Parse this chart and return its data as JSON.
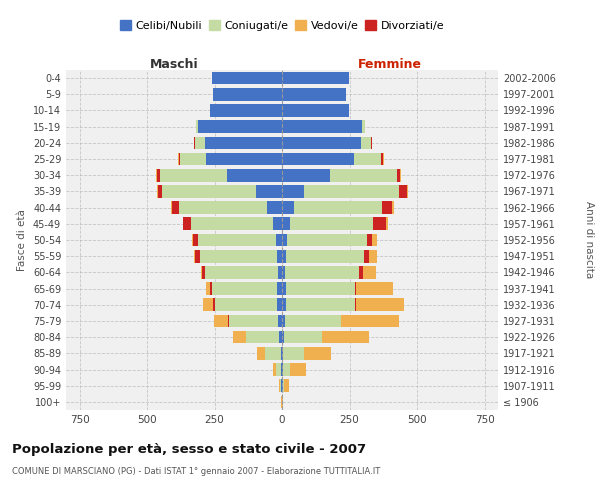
{
  "age_groups": [
    "100+",
    "95-99",
    "90-94",
    "85-89",
    "80-84",
    "75-79",
    "70-74",
    "65-69",
    "60-64",
    "55-59",
    "50-54",
    "45-49",
    "40-44",
    "35-39",
    "30-34",
    "25-29",
    "20-24",
    "15-19",
    "10-14",
    "5-9",
    "0-4"
  ],
  "birth_years": [
    "≤ 1906",
    "1907-1911",
    "1912-1916",
    "1917-1921",
    "1922-1926",
    "1927-1931",
    "1932-1936",
    "1937-1941",
    "1942-1946",
    "1947-1951",
    "1952-1956",
    "1957-1961",
    "1962-1966",
    "1967-1971",
    "1972-1976",
    "1977-1981",
    "1982-1986",
    "1987-1991",
    "1992-1996",
    "1997-2001",
    "2002-2006"
  ],
  "maschi": {
    "celibi": [
      0,
      2,
      3,
      5,
      10,
      15,
      20,
      18,
      15,
      20,
      22,
      32,
      55,
      95,
      205,
      280,
      285,
      310,
      265,
      255,
      258
    ],
    "coniugati": [
      1,
      4,
      18,
      58,
      125,
      182,
      230,
      242,
      270,
      285,
      290,
      305,
      325,
      348,
      248,
      98,
      38,
      8,
      0,
      0,
      0
    ],
    "vedovi": [
      1,
      4,
      14,
      28,
      48,
      52,
      38,
      18,
      5,
      2,
      2,
      2,
      2,
      2,
      2,
      1,
      1,
      0,
      0,
      0,
      0
    ],
    "divorziati": [
      0,
      0,
      0,
      0,
      0,
      2,
      5,
      5,
      10,
      18,
      18,
      28,
      28,
      18,
      10,
      5,
      2,
      0,
      0,
      0,
      0
    ]
  },
  "femmine": {
    "nubili": [
      0,
      2,
      3,
      5,
      8,
      12,
      15,
      15,
      12,
      15,
      18,
      28,
      45,
      80,
      178,
      268,
      292,
      298,
      248,
      238,
      248
    ],
    "coniugate": [
      1,
      6,
      28,
      78,
      140,
      205,
      255,
      255,
      275,
      290,
      295,
      310,
      325,
      355,
      248,
      98,
      38,
      8,
      0,
      0,
      0
    ],
    "vedove": [
      2,
      18,
      58,
      98,
      175,
      215,
      175,
      135,
      48,
      28,
      18,
      8,
      5,
      3,
      2,
      2,
      2,
      0,
      0,
      0,
      0
    ],
    "divorziate": [
      0,
      0,
      0,
      0,
      0,
      2,
      5,
      5,
      12,
      18,
      22,
      48,
      38,
      28,
      12,
      8,
      2,
      0,
      0,
      0,
      0
    ]
  },
  "colors": {
    "celibi": "#4472c4",
    "coniugati": "#c5dba4",
    "vedovi": "#f0b050",
    "divorziati": "#cc2222"
  },
  "xlim": 800,
  "bg_color": "#f0f0f0",
  "title": "Popolazione per età, sesso e stato civile - 2007",
  "subtitle": "COMUNE DI MARSCIANO (PG) - Dati ISTAT 1° gennaio 2007 - Elaborazione TUTTITALIA.IT",
  "xlabel_left": "Maschi",
  "xlabel_right": "Femmine",
  "ylabel_left": "Fasce di età",
  "ylabel_right": "Anni di nascita",
  "legend_labels": [
    "Celibi/Nubili",
    "Coniugati/e",
    "Vedovi/e",
    "Divorziati/e"
  ],
  "xticks": [
    750,
    500,
    250,
    0,
    250,
    500,
    750
  ]
}
